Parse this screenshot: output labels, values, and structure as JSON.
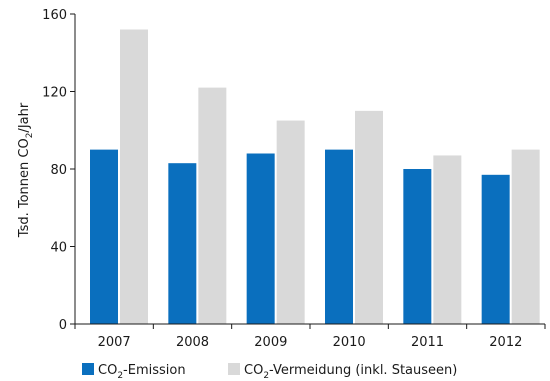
{
  "chart_data": {
    "type": "bar",
    "categories": [
      "2007",
      "2008",
      "2009",
      "2010",
      "2011",
      "2012"
    ],
    "series": [
      {
        "name": "CO₂-Emission",
        "name_main": "CO",
        "name_sub": "2",
        "name_rest": "-Emission",
        "color": "#0a6fbe",
        "values": [
          90,
          83,
          88,
          90,
          80,
          77
        ]
      },
      {
        "name": "CO₂-Vermeidung (inkl. Stauseen)",
        "name_main": "CO",
        "name_sub": "2",
        "name_rest": "-Vermeidung (inkl. Stauseen)",
        "color": "#d9d9d9",
        "values": [
          152,
          122,
          105,
          110,
          87,
          90
        ]
      }
    ],
    "ylabel": "Tsd. Tonnen CO₂/Jahr",
    "ylabel_main": "Tsd. Tonnen CO",
    "ylabel_sub": "2",
    "ylabel_rest": "/Jahr",
    "ylim": [
      0,
      160
    ],
    "yticks": [
      "0",
      "40",
      "80",
      "120",
      "160"
    ],
    "grid": false,
    "legend_position": "bottom-left"
  }
}
